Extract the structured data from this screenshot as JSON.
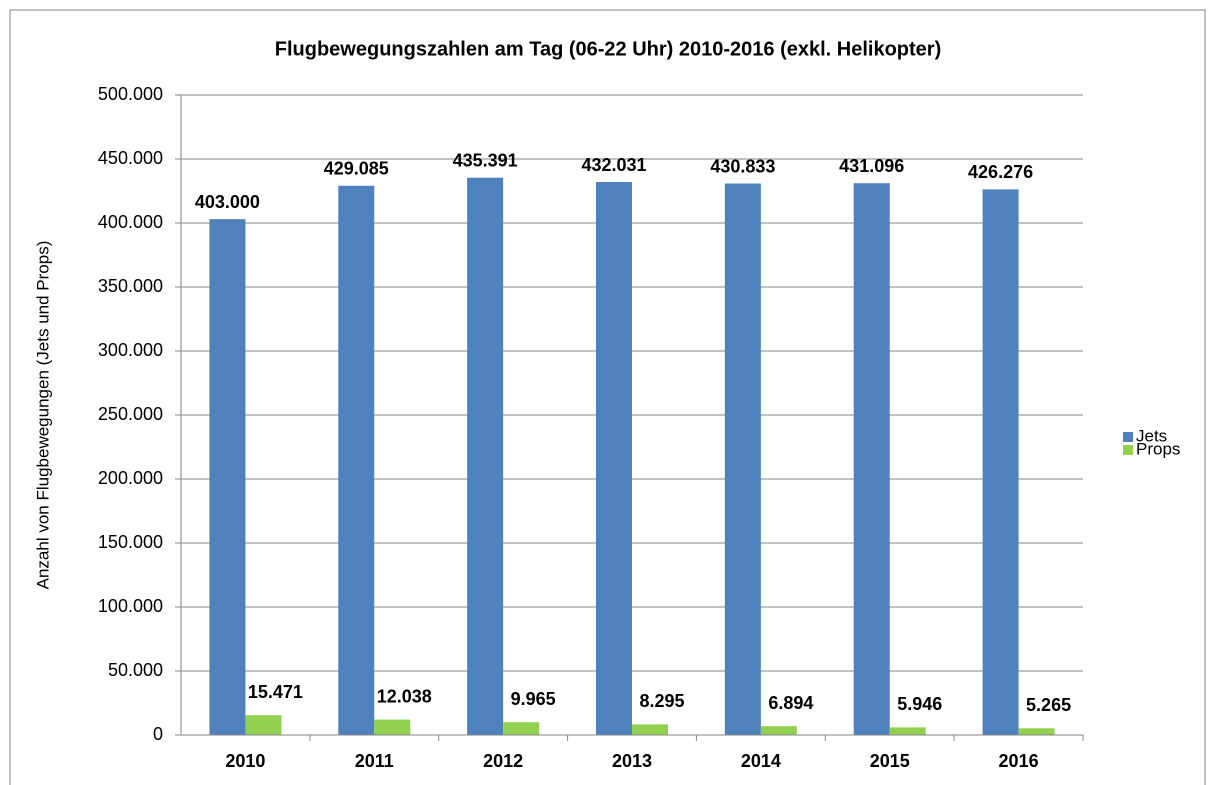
{
  "chart_data": {
    "type": "bar",
    "title": "Flugbewegungszahlen am Tag (06-22 Uhr) 2010-2016 (exkl. Helikopter)",
    "y_label": "Anzahl von Flugbewegungen (Jets und Props)",
    "categories": [
      "2010",
      "2011",
      "2012",
      "2013",
      "2014",
      "2015",
      "2016"
    ],
    "series": [
      {
        "name": "Jets",
        "color": "#4f81bd",
        "values": [
          403000,
          429085,
          435391,
          432031,
          430833,
          431096,
          426276
        ],
        "value_labels": [
          "403.000",
          "429.085",
          "435.391",
          "432.031",
          "430.833",
          "431.096",
          "426.276"
        ]
      },
      {
        "name": "Props",
        "color": "#92d050",
        "values": [
          15471,
          12038,
          9965,
          8295,
          6894,
          5946,
          5265
        ],
        "value_labels": [
          "15.471",
          "12.038",
          "9.965",
          "8.295",
          "6.894",
          "5.946",
          "5.265"
        ]
      }
    ],
    "ylim": [
      0,
      500000
    ],
    "yticks": [
      0,
      {
        "value": 50000,
        "label": "50.000"
      },
      {
        "value": 100000,
        "label": "100.000"
      },
      {
        "value": 150000,
        "label": "150.000"
      },
      {
        "value": 200000,
        "label": "200.000"
      },
      {
        "value": 250000,
        "label": "250.000"
      },
      {
        "value": 300000,
        "label": "300.000"
      },
      {
        "value": 350000,
        "label": "350.000"
      },
      {
        "value": 400000,
        "label": "400.000"
      },
      {
        "value": 450000,
        "label": "450.000"
      },
      {
        "value": 500000,
        "label": "500.000"
      }
    ],
    "grid": true,
    "legend": "right"
  }
}
